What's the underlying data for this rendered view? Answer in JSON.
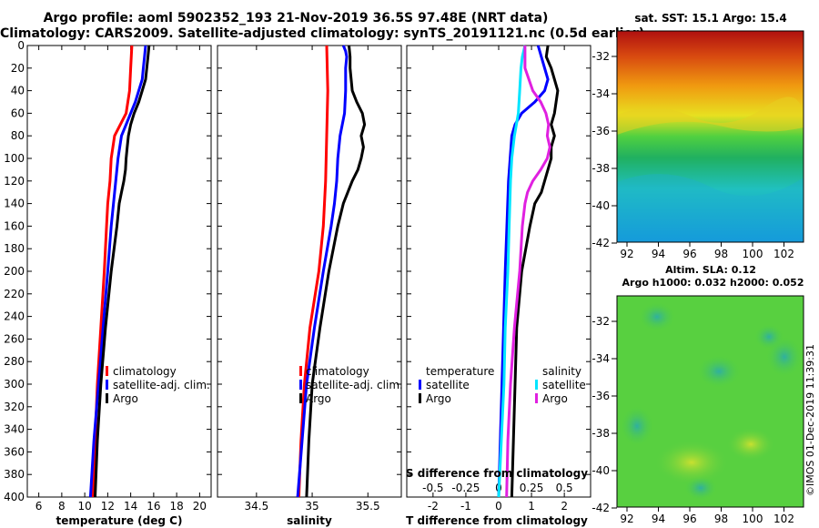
{
  "header": {
    "line1": "Argo profile: aoml 5902352_193 21-Nov-2019 36.5S 97.48E (NRT data)",
    "line2": "Climatology: CARS2009. Satellite-adjusted climatology: synTS_20191121.nc (0.5d earlier)"
  },
  "maps": {
    "sst_title": "sat. SST: 15.1 Argo: 15.4",
    "altim_title": "Altim. SLA: 0.12",
    "argo_h": "Argo h1000: 0.032 h2000: 0.052",
    "credit": "©IMOS 01-Dec-2019 11:39:31",
    "lat_ticks": [
      "-32",
      "-34",
      "-36",
      "-38",
      "-40",
      "-42"
    ],
    "lon_ticks": [
      "92",
      "94",
      "96",
      "98",
      "100",
      "102"
    ]
  },
  "colors": {
    "red": "#ff0000",
    "blue": "#0000ff",
    "black": "#000000",
    "cyan": "#00e5ff",
    "magenta": "#e020e0"
  },
  "chart_data": [
    {
      "type": "line",
      "panel": "temperature",
      "xlabel": "temperature (deg C)",
      "ylabel": "",
      "xlim": [
        5,
        21
      ],
      "ylim": [
        400,
        0
      ],
      "xticks": [
        6,
        8,
        10,
        12,
        14,
        16,
        18,
        20
      ],
      "yticks": [
        0,
        20,
        40,
        60,
        80,
        100,
        120,
        140,
        160,
        180,
        200,
        220,
        240,
        260,
        280,
        300,
        320,
        340,
        360,
        380,
        400
      ],
      "legend": [
        "climatology",
        "satellite-adj. clim.",
        "Argo"
      ],
      "series": [
        {
          "name": "climatology",
          "color": "red",
          "depth": [
            0,
            20,
            40,
            60,
            80,
            100,
            120,
            140,
            160,
            200,
            250,
            300,
            350,
            400
          ],
          "values": [
            14.1,
            14.0,
            13.9,
            13.6,
            12.6,
            12.3,
            12.2,
            12.0,
            11.9,
            11.7,
            11.4,
            11.1,
            10.9,
            10.7
          ]
        },
        {
          "name": "satellite-adj. clim.",
          "color": "blue",
          "depth": [
            0,
            10,
            20,
            30,
            40,
            50,
            60,
            70,
            80,
            100,
            120,
            140,
            160,
            200,
            250,
            300,
            350,
            400
          ],
          "values": [
            15.3,
            15.2,
            15.1,
            15.0,
            14.7,
            14.4,
            14.0,
            13.6,
            13.2,
            12.9,
            12.7,
            12.5,
            12.3,
            12.0,
            11.6,
            11.2,
            10.8,
            10.5
          ]
        },
        {
          "name": "Argo",
          "color": "black",
          "depth": [
            0,
            10,
            20,
            30,
            40,
            50,
            60,
            70,
            80,
            90,
            100,
            110,
            120,
            130,
            140,
            160,
            200,
            250,
            300,
            350,
            400
          ],
          "values": [
            15.6,
            15.5,
            15.4,
            15.3,
            15.0,
            14.7,
            14.3,
            14.0,
            13.8,
            13.7,
            13.6,
            13.55,
            13.4,
            13.2,
            13.0,
            12.8,
            12.3,
            11.8,
            11.4,
            11.1,
            10.9
          ]
        }
      ]
    },
    {
      "type": "line",
      "panel": "salinity",
      "xlabel": "salinity",
      "ylabel": "",
      "xlim": [
        34.15,
        35.8
      ],
      "ylim": [
        400,
        0
      ],
      "xticks": [
        34.5,
        35,
        35.5
      ],
      "legend": [
        "climatology",
        "satellite-adj. clim.",
        "Argo"
      ],
      "series": [
        {
          "name": "climatology",
          "color": "red",
          "depth": [
            0,
            40,
            80,
            120,
            160,
            200,
            250,
            300,
            350,
            400
          ],
          "values": [
            35.13,
            35.14,
            35.13,
            35.12,
            35.1,
            35.06,
            34.98,
            34.93,
            34.9,
            34.88
          ]
        },
        {
          "name": "satellite-adj. clim.",
          "color": "blue",
          "depth": [
            0,
            5,
            10,
            20,
            40,
            60,
            80,
            100,
            120,
            140,
            160,
            200,
            250,
            300,
            350,
            400
          ],
          "values": [
            35.28,
            35.3,
            35.31,
            35.3,
            35.3,
            35.29,
            35.25,
            35.23,
            35.22,
            35.2,
            35.17,
            35.1,
            35.02,
            34.95,
            34.91,
            34.87
          ]
        },
        {
          "name": "Argo",
          "color": "black",
          "depth": [
            0,
            10,
            20,
            30,
            40,
            50,
            60,
            70,
            80,
            90,
            100,
            110,
            120,
            130,
            140,
            160,
            200,
            250,
            300,
            350,
            400
          ],
          "values": [
            35.33,
            35.34,
            35.34,
            35.35,
            35.36,
            35.4,
            35.45,
            35.47,
            35.44,
            35.46,
            35.44,
            35.41,
            35.36,
            35.32,
            35.28,
            35.23,
            35.15,
            35.07,
            35.0,
            34.97,
            34.95
          ]
        }
      ]
    },
    {
      "type": "line",
      "panel": "difference",
      "xlabel": "T difference from climatology",
      "xlabel_top": "S difference from climatology",
      "xlim": [
        -2.8,
        2.8
      ],
      "ylim": [
        400,
        0
      ],
      "xticks": [
        -2,
        -1,
        0,
        1,
        2
      ],
      "xticks_top": [
        "-0.5",
        "-0.25",
        "0",
        "0.25",
        "0.5"
      ],
      "legend_temperature_title": "temperature",
      "legend_salinity_title": "salinity",
      "legend_temperature": [
        "satellite",
        "Argo"
      ],
      "legend_salinity": [
        "satellite",
        "Argo"
      ],
      "series": [
        {
          "name": "temperature satellite",
          "color": "blue",
          "depth": [
            0,
            10,
            20,
            30,
            40,
            50,
            60,
            70,
            80,
            100,
            120,
            160,
            200,
            250,
            300,
            350,
            400
          ],
          "values": [
            1.2,
            1.3,
            1.4,
            1.5,
            1.4,
            1.1,
            0.7,
            0.5,
            0.4,
            0.35,
            0.3,
            0.25,
            0.2,
            0.15,
            0.1,
            0.05,
            0.0
          ]
        },
        {
          "name": "temperature Argo",
          "color": "black",
          "depth": [
            0,
            10,
            20,
            30,
            40,
            50,
            60,
            70,
            80,
            90,
            100,
            110,
            120,
            130,
            140,
            160,
            200,
            250,
            300,
            350,
            400
          ],
          "values": [
            1.5,
            1.45,
            1.6,
            1.7,
            1.8,
            1.75,
            1.7,
            1.6,
            1.7,
            1.6,
            1.6,
            1.5,
            1.4,
            1.3,
            1.1,
            0.95,
            0.7,
            0.55,
            0.5,
            0.45,
            0.4
          ]
        },
        {
          "name": "salinity satellite",
          "color": "cyan",
          "depth": [
            0,
            10,
            20,
            40,
            60,
            80,
            100,
            120,
            160,
            200,
            250,
            300,
            350,
            400
          ],
          "values": [
            0.2,
            0.18,
            0.17,
            0.16,
            0.15,
            0.12,
            0.1,
            0.09,
            0.08,
            0.07,
            0.05,
            0.04,
            0.02,
            0.0
          ]
        },
        {
          "name": "salinity Argo",
          "color": "magenta",
          "depth": [
            0,
            20,
            40,
            50,
            60,
            70,
            80,
            90,
            100,
            110,
            120,
            130,
            140,
            160,
            200,
            250,
            300,
            350,
            400
          ],
          "values": [
            0.2,
            0.2,
            0.26,
            0.32,
            0.36,
            0.38,
            0.37,
            0.39,
            0.37,
            0.32,
            0.26,
            0.22,
            0.2,
            0.18,
            0.16,
            0.12,
            0.09,
            0.07,
            0.06
          ]
        }
      ]
    }
  ]
}
